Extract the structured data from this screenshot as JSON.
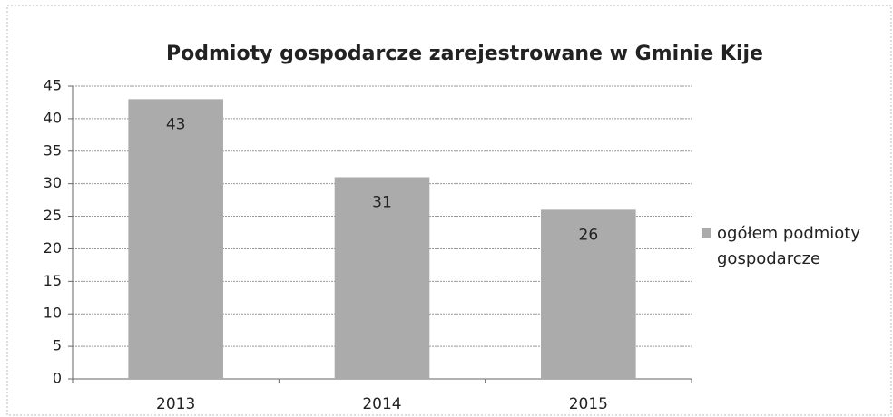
{
  "chart_data": {
    "type": "bar",
    "title": "Podmioty gospodarcze zarejestrowane w Gminie Kije",
    "categories": [
      "2013",
      "2014",
      "2015"
    ],
    "series": [
      {
        "name": "ogółem podmioty gospodarcze",
        "color": "#ababab",
        "values": [
          43,
          31,
          26
        ]
      }
    ],
    "ylim": [
      0,
      45
    ],
    "yticks": [
      0,
      5,
      10,
      15,
      20,
      25,
      30,
      35,
      40,
      45
    ],
    "grid": true,
    "legend": "right"
  }
}
